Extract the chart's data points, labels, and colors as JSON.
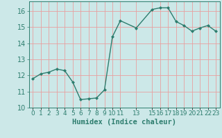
{
  "x": [
    0,
    1,
    2,
    3,
    4,
    5,
    6,
    7,
    8,
    9,
    10,
    11,
    13,
    15,
    16,
    17,
    18,
    19,
    20,
    21,
    22,
    23
  ],
  "y": [
    11.8,
    12.1,
    12.2,
    12.4,
    12.3,
    11.6,
    10.5,
    10.55,
    10.6,
    11.1,
    14.4,
    15.4,
    14.95,
    16.1,
    16.2,
    16.2,
    15.35,
    15.1,
    14.75,
    14.95,
    15.1,
    14.75
  ],
  "line_color": "#2d7d6e",
  "marker": "D",
  "marker_size": 2.0,
  "line_width": 1.0,
  "bg_color": "#cce8e8",
  "grid_color": "#e8a0a0",
  "tick_color": "#2d7d6e",
  "xlabel": "Humidex (Indice chaleur)",
  "xlabel_fontsize": 7.5,
  "xlim": [
    -0.5,
    23.5
  ],
  "ylim": [
    10,
    16.6
  ],
  "yticks": [
    10,
    11,
    12,
    13,
    14,
    15,
    16
  ],
  "xticks": [
    0,
    1,
    2,
    3,
    4,
    5,
    6,
    7,
    8,
    9,
    10,
    11,
    13,
    15,
    16,
    17,
    18,
    19,
    20,
    21,
    22,
    23
  ],
  "xtick_labels": [
    "0",
    "1",
    "2",
    "3",
    "4",
    "5",
    "6",
    "7",
    "8",
    "9",
    "10",
    "11",
    "13",
    "15",
    "16",
    "17",
    "18",
    "19",
    "20",
    "21",
    "22",
    "23"
  ],
  "tick_fontsize": 6.5,
  "ytick_fontsize": 7
}
